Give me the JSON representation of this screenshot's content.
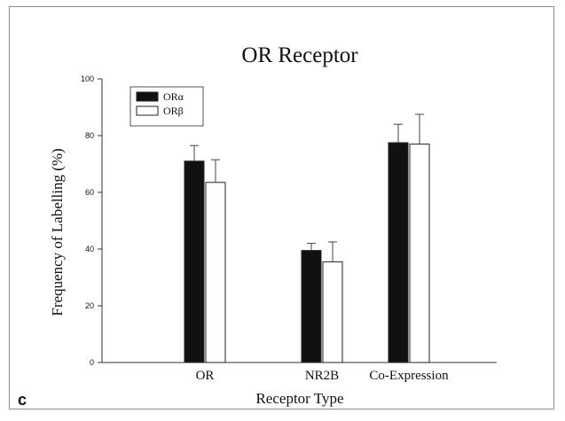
{
  "panel_label": "c",
  "chart_data": {
    "type": "bar",
    "title": "OR Receptor",
    "xlabel": "Receptor Type",
    "ylabel": "Frequency of Labelling (%)",
    "ylim": [
      0,
      100
    ],
    "yticks": [
      0,
      20,
      40,
      60,
      80,
      100
    ],
    "categories": [
      "OR",
      "NR2B",
      "Co-Expression"
    ],
    "series": [
      {
        "name": "ORα",
        "values": [
          71,
          39.5,
          77.5
        ],
        "errors": [
          5.5,
          2.5,
          6.5
        ],
        "color": "#111111"
      },
      {
        "name": "ORβ",
        "values": [
          63.5,
          35.5,
          77
        ],
        "errors": [
          8,
          7,
          10.5
        ],
        "color": "#ffffff"
      }
    ],
    "legend_position": "top-left",
    "grid": false,
    "error_bars": "upper"
  }
}
